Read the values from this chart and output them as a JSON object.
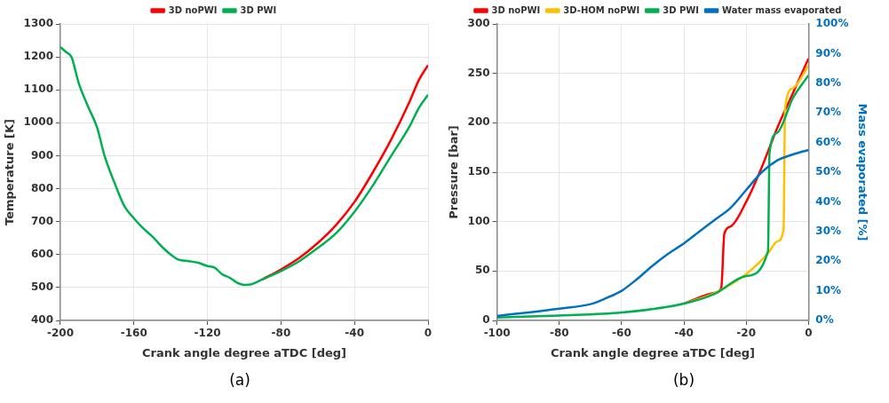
{
  "chart_data": [
    {
      "type": "line",
      "xlabel": "Crank angle degree aTDC [deg]",
      "ylabel": "Temperature [K]",
      "xlim": [
        -200,
        0
      ],
      "xticks": [
        -200,
        -160,
        -120,
        -80,
        -40,
        0
      ],
      "ylim": [
        400,
        1300
      ],
      "yticks": [
        400,
        500,
        600,
        700,
        800,
        900,
        1000,
        1100,
        1200,
        1300
      ],
      "grid": true,
      "legend": "top",
      "line_style": "solid",
      "marker": "none",
      "annotations": [
        "(a)"
      ],
      "series": [
        {
          "name": "3D noPWI",
          "color": "#ff0000",
          "x": [
            -90,
            -80,
            -70,
            -60,
            -50,
            -40,
            -30,
            -20,
            -10,
            -5,
            0
          ],
          "values": [
            525,
            555,
            590,
            635,
            690,
            760,
            850,
            950,
            1065,
            1130,
            1175
          ]
        },
        {
          "name": "3D PWI",
          "color": "#00b050",
          "x": [
            -200,
            -197,
            -194,
            -190,
            -185,
            -180,
            -176,
            -170,
            -165,
            -160,
            -155,
            -150,
            -145,
            -140,
            -136,
            -130,
            -125,
            -120,
            -116,
            -112,
            -108,
            -104,
            -100,
            -96,
            -90,
            -80,
            -70,
            -60,
            -50,
            -40,
            -30,
            -20,
            -10,
            -5,
            0
          ],
          "values": [
            1230,
            1215,
            1200,
            1120,
            1050,
            985,
            900,
            810,
            745,
            710,
            680,
            655,
            625,
            600,
            585,
            580,
            575,
            565,
            560,
            540,
            530,
            515,
            508,
            510,
            525,
            550,
            580,
            620,
            665,
            730,
            810,
            900,
            990,
            1045,
            1085
          ]
        }
      ]
    },
    {
      "type": "line",
      "xlabel": "Crank angle degree aTDC [deg]",
      "ylabel": "Pressure [bar]",
      "y2label": "Mass evaporated [%]",
      "xlim": [
        -100,
        0
      ],
      "xticks": [
        -100,
        -80,
        -60,
        -40,
        -20,
        0
      ],
      "ylim": [
        0,
        300
      ],
      "yticks": [
        0,
        50,
        100,
        150,
        200,
        250,
        300
      ],
      "y2lim": [
        0,
        100
      ],
      "y2ticks": [
        {
          "value": 0,
          "label": "0%"
        },
        {
          "value": 10,
          "label": "10%"
        },
        {
          "value": 20,
          "label": "20%"
        },
        {
          "value": 30,
          "label": "30%"
        },
        {
          "value": 40,
          "label": "40%"
        },
        {
          "value": 50,
          "label": "50%"
        },
        {
          "value": 60,
          "label": "60%"
        },
        {
          "value": 70,
          "label": "70%"
        },
        {
          "value": 80,
          "label": "80%"
        },
        {
          "value": 90,
          "label": "90%"
        },
        {
          "value": 100,
          "label": "100%"
        }
      ],
      "grid": true,
      "legend": "top",
      "line_style": "solid",
      "marker": "none",
      "annotations": [
        "(b)"
      ],
      "series": [
        {
          "name": "3D noPWI",
          "color": "#ff0000",
          "x": [
            -40,
            -30,
            -28,
            -27,
            -25,
            -20,
            -15,
            -10,
            -5,
            0
          ],
          "values": [
            17,
            28,
            33,
            88,
            95,
            120,
            155,
            195,
            230,
            265
          ]
        },
        {
          "name": "3D-HOM noPWI",
          "color": "#ffc000",
          "x": [
            -40,
            -30,
            -20,
            -13,
            -10,
            -8,
            -7.5,
            -5,
            0
          ],
          "values": [
            17,
            28,
            47,
            68,
            80,
            92,
            215,
            235,
            258
          ]
        },
        {
          "name": "3D PWI",
          "color": "#00b050",
          "x": [
            -100,
            -80,
            -60,
            -40,
            -30,
            -20,
            -13,
            -12.5,
            -10,
            -5,
            0
          ],
          "values": [
            3,
            5,
            8,
            17,
            27,
            45,
            70,
            170,
            190,
            225,
            248
          ]
        },
        {
          "name": "Water mass evaporated",
          "color": "#0070c0",
          "axis": "y2",
          "x": [
            -100,
            -80,
            -70,
            -65,
            -60,
            -55,
            -50,
            -45,
            -40,
            -35,
            -30,
            -25,
            -20,
            -15,
            -10,
            -5,
            0
          ],
          "values": [
            1.5,
            4,
            5.5,
            7.5,
            10,
            14,
            18.5,
            22.5,
            26,
            30,
            34,
            38,
            44,
            50,
            54,
            56,
            57.5
          ]
        }
      ]
    }
  ]
}
